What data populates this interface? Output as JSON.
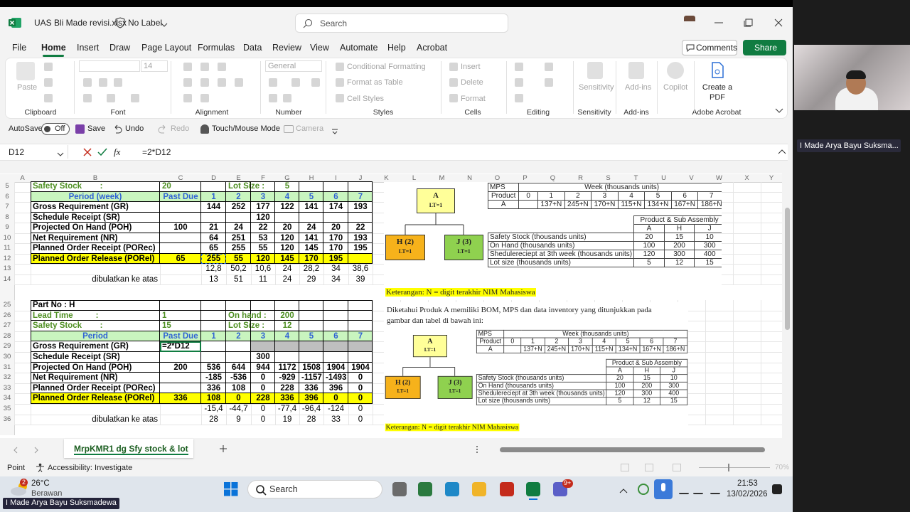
{
  "window": {
    "file": "UAS Bli Made revisi.xlsx",
    "label": "No Label",
    "search": "Search"
  },
  "menu": {
    "tabs": [
      "File",
      "Home",
      "Insert",
      "Draw",
      "Page Layout",
      "Formulas",
      "Data",
      "Review",
      "View",
      "Automate",
      "Help",
      "Acrobat"
    ],
    "comments": "Comments",
    "share": "Share"
  },
  "ribbon": {
    "paste": "Paste",
    "font_size": "14",
    "number_format": "General",
    "conditional_formatting": "Conditional Formatting",
    "format_as_table": "Format as Table",
    "cell_styles": "Cell Styles",
    "insert": "Insert",
    "delete": "Delete",
    "format": "Format",
    "sensitivity": "Sensitivity",
    "add_ins": "Add-ins",
    "copilot": "Copilot",
    "create_pdf": "Create a PDF",
    "groups": [
      "Clipboard",
      "Font",
      "Alignment",
      "Number",
      "Styles",
      "Cells",
      "Editing",
      "Sensitivity",
      "Add-ins",
      "Adobe Acrobat"
    ]
  },
  "quick": {
    "autosave": "AutoSave",
    "off": "Off",
    "save": "Save",
    "undo": "Undo",
    "redo": "Redo",
    "touch": "Touch/Mouse Mode",
    "camera": "Camera"
  },
  "formula_bar": {
    "name_box": "D12",
    "fx": "fx",
    "formula": "=2*D12"
  },
  "sheet": {
    "columns": [
      "A",
      "B",
      "C",
      "D",
      "E",
      "F",
      "G",
      "H",
      "I",
      "J",
      "K",
      "L",
      "M",
      "N",
      "O",
      "P",
      "Q",
      "R",
      "S",
      "T",
      "U",
      "V",
      "W",
      "X",
      "Y"
    ],
    "rows": [
      {
        "n": "5",
        "cells": {
          "B": "Safety Stock        :",
          "C": "20",
          "E": "Lot Size :",
          "G": "5"
        }
      },
      {
        "n": "6",
        "cells": {
          "B": "Period (week)",
          "C": "Past Due",
          "D": "1",
          "E": "2",
          "F": "3",
          "G": "4",
          "H": "5",
          "I": "6",
          "J": "7"
        }
      },
      {
        "n": "7",
        "cells": {
          "B": "Gross Requirement (GR)",
          "D": "144",
          "E": "252",
          "F": "177",
          "G": "122",
          "H": "141",
          "I": "174",
          "J": "193"
        }
      },
      {
        "n": "8",
        "cells": {
          "B": "Schedule Receipt (SR)",
          "F": "120"
        }
      },
      {
        "n": "9",
        "cells": {
          "B": "Projected On Hand (POH)",
          "C": "100",
          "D": "21",
          "E": "24",
          "F": "22",
          "G": "20",
          "H": "24",
          "I": "20",
          "J": "22"
        }
      },
      {
        "n": "10",
        "cells": {
          "B": "Net Requirement (NR)",
          "D": "64",
          "E": "251",
          "F": "53",
          "G": "120",
          "H": "141",
          "I": "170",
          "J": "193"
        }
      },
      {
        "n": "11",
        "cells": {
          "B": "Planned Order Receipt (PORec)",
          "D": "65",
          "E": "255",
          "F": "55",
          "G": "120",
          "H": "145",
          "I": "170",
          "J": "195"
        }
      },
      {
        "n": "12",
        "cells": {
          "B": "Planned Order Release (PORel)",
          "C": "65",
          "D": "255",
          "E": "55",
          "F": "120",
          "G": "145",
          "H": "170",
          "I": "195"
        }
      },
      {
        "n": "13",
        "cells": {
          "D": "12,8",
          "E": "50,2",
          "F": "10,6",
          "G": "24",
          "H": "28,2",
          "I": "34",
          "J": "38,6"
        }
      },
      {
        "n": "14",
        "cells": {
          "B": "dibulatkan ke atas",
          "D": "13",
          "E": "51",
          "F": "11",
          "G": "24",
          "H": "29",
          "I": "34",
          "J": "39"
        }
      },
      {
        "n": "25",
        "cells": {
          "B": "Part No : H"
        }
      },
      {
        "n": "26",
        "cells": {
          "B": "Lead Time          :",
          "C": "1",
          "E": "On hand :",
          "G": "200"
        }
      },
      {
        "n": "27",
        "cells": {
          "B": "Safety Stock        :",
          "C": "15",
          "E": "Lot Size :",
          "G": "12"
        }
      },
      {
        "n": "28",
        "cells": {
          "B": "Period",
          "C": "Past Due",
          "D": "1",
          "E": "2",
          "F": "3",
          "G": "4",
          "H": "5",
          "I": "6",
          "J": "7"
        }
      },
      {
        "n": "29",
        "cells": {
          "B": "Gross Requirement (GR)",
          "C": "=2*D12"
        }
      },
      {
        "n": "30",
        "cells": {
          "B": "Schedule Receipt (SR)",
          "F": "300"
        }
      },
      {
        "n": "31",
        "cells": {
          "B": "Projected On Hand (POH)",
          "C": "200",
          "D": "536",
          "E": "644",
          "F": "944",
          "G": "1172",
          "H": "1508",
          "I": "1904",
          "J": "1904"
        }
      },
      {
        "n": "32",
        "cells": {
          "B": "Net Requirement (NR)",
          "D": "-185",
          "E": "-536",
          "F": "0",
          "G": "-929",
          "H": "-1157",
          "I": "-1493",
          "J": "0"
        }
      },
      {
        "n": "33",
        "cells": {
          "B": "Planned Order Receipt (PORec)",
          "D": "336",
          "E": "108",
          "F": "0",
          "G": "228",
          "H": "336",
          "I": "396",
          "J": "0"
        }
      },
      {
        "n": "34",
        "cells": {
          "B": "Planned Order Release (PORel)",
          "C": "336",
          "D": "108",
          "E": "0",
          "F": "228",
          "G": "336",
          "H": "396",
          "I": "0",
          "J": "0"
        }
      },
      {
        "n": "35",
        "cells": {
          "D": "-15,4",
          "E": "-44,7",
          "F": "0",
          "G": "-77,4",
          "H": "-96,4",
          "I": "-124",
          "J": "0"
        }
      },
      {
        "n": "36",
        "cells": {
          "B": "dibulatkan ke atas",
          "D": "28",
          "E": "9",
          "F": "0",
          "G": "19",
          "H": "28",
          "I": "33",
          "J": "0"
        }
      }
    ],
    "tab": "MrpKMR1 dg Sfy stock & lot"
  },
  "pictures": [
    {
      "bom": {
        "nodes": [
          {
            "name": "A",
            "lt": "LT=1"
          },
          {
            "name": "H (2)",
            "lt": "LT=1"
          },
          {
            "name": "J (3)",
            "lt": "LT=1"
          }
        ]
      },
      "mps": {
        "label": "MPS",
        "week_header": "Week (thousands units)",
        "product_header": "Product",
        "weeks": [
          "0",
          "1",
          "2",
          "3",
          "4",
          "5",
          "6",
          "7"
        ],
        "product": "A",
        "values": [
          "137+N",
          "245+N",
          "170+N",
          "115+N",
          "134+N",
          "167+N",
          "186+N"
        ]
      },
      "inventory": {
        "header": "Product & Sub Assembly",
        "items": [
          "A",
          "H",
          "J"
        ],
        "rows": [
          {
            "label": "Safety Stock (thousands units)",
            "values": [
              "20",
              "15",
              "10"
            ]
          },
          {
            "label": "On Hand (thousands units)",
            "values": [
              "100",
              "200",
              "300"
            ]
          },
          {
            "label": "Shedulereciept at 3th week (thousands units)",
            "values": [
              "120",
              "300",
              "400"
            ]
          },
          {
            "label": "Lot size (thousands units)",
            "values": [
              "5",
              "12",
              "15"
            ]
          }
        ]
      },
      "note": "Keterangan: N = digit terakhir NIM Mahasiswa"
    },
    {
      "intro": "Diketahui Produk A memiliki BOM, MPS dan data inventory yang ditunjukkan pada gambar dan tabel di bawah ini:",
      "bom": {
        "nodes": [
          {
            "name": "A",
            "lt": "LT=1"
          },
          {
            "name": "H (2)",
            "lt": "LT=1"
          },
          {
            "name": "J (3)",
            "lt": "LT=1"
          }
        ]
      },
      "mps": {
        "label": "MPS",
        "week_header": "Week (thousands units)",
        "product_header": "Product",
        "weeks": [
          "0",
          "1",
          "2",
          "3",
          "4",
          "5",
          "6",
          "7"
        ],
        "product": "A",
        "values": [
          "137+N",
          "245+N",
          "170+N",
          "115+N",
          "134+N",
          "167+N",
          "186+N"
        ]
      },
      "inventory": {
        "header": "Product & Sub Assembly",
        "items": [
          "A",
          "H",
          "J"
        ],
        "rows": [
          {
            "label": "Safety Stock (thousands units)",
            "values": [
              "20",
              "15",
              "10"
            ]
          },
          {
            "label": "On Hand (thousands units)",
            "values": [
              "100",
              "200",
              "300"
            ]
          },
          {
            "label": "Shedulereciept at 3th week (thousands units)",
            "values": [
              "120",
              "300",
              "400"
            ]
          },
          {
            "label": "Lot size (thousands units)",
            "values": [
              "5",
              "12",
              "15"
            ]
          }
        ]
      },
      "note": "Keterangan: N = digit terakhir NIM Mahasiswa"
    }
  ],
  "status": {
    "mode": "Point",
    "accessibility": "Accessibility: Investigate",
    "zoom": "70%"
  },
  "taskbar": {
    "weather_badge": "2",
    "temp": "26°C",
    "weather": "Berawan",
    "search": "Search",
    "teams_badge": "9+",
    "time": "21:53",
    "date": "13/02/2026"
  },
  "participant": {
    "tile": "I Made Arya Bayu Suksma...",
    "caption": "I Made Arya Bayu Suksmadewa"
  }
}
